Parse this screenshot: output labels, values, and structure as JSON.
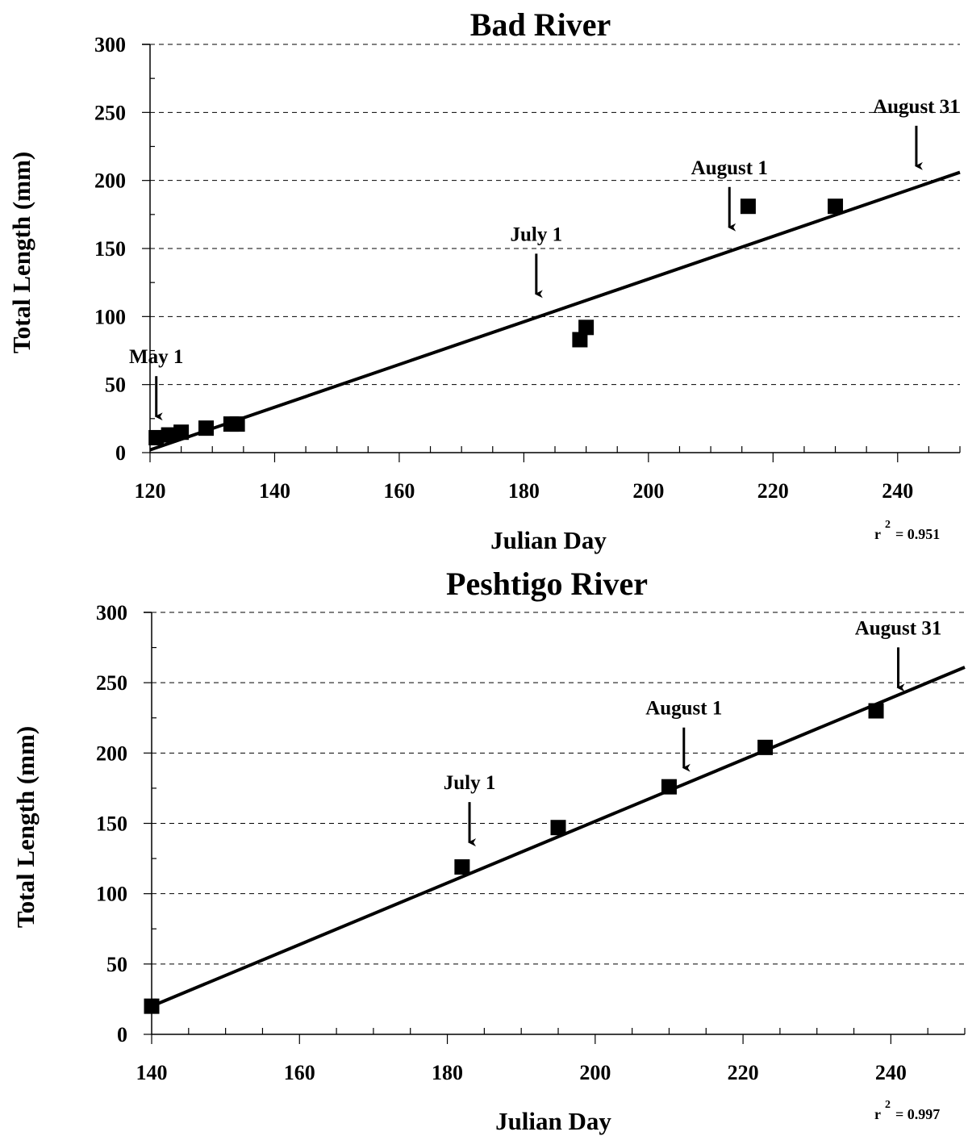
{
  "chart_data": [
    {
      "type": "scatter",
      "title": "Bad River",
      "xlabel": "Julian Day",
      "ylabel": "Total Length (mm)",
      "xlim": [
        120,
        250
      ],
      "ylim": [
        0,
        300
      ],
      "xticks": [
        120,
        140,
        160,
        180,
        200,
        220,
        240
      ],
      "yticks": [
        0,
        50,
        100,
        150,
        200,
        250,
        300
      ],
      "grid": "horizontal dashed",
      "points": [
        {
          "x": 121,
          "y": 11
        },
        {
          "x": 123,
          "y": 13
        },
        {
          "x": 125,
          "y": 15
        },
        {
          "x": 129,
          "y": 18
        },
        {
          "x": 133,
          "y": 21
        },
        {
          "x": 134,
          "y": 21
        },
        {
          "x": 189,
          "y": 83
        },
        {
          "x": 190,
          "y": 92
        },
        {
          "x": 216,
          "y": 181
        },
        {
          "x": 230,
          "y": 181
        }
      ],
      "trendline": {
        "x": [
          120,
          250
        ],
        "y": [
          2,
          206
        ]
      },
      "r2_label": "r",
      "r2_exp": "2",
      "r2_value": "= 0.951",
      "annotations": [
        {
          "text": "May 1",
          "x": 121,
          "y": 23
        },
        {
          "text": "July 1",
          "x": 182,
          "y": 113
        },
        {
          "text": "August 1",
          "x": 213,
          "y": 162
        },
        {
          "text": "August 31",
          "x": 243,
          "y": 207
        }
      ]
    },
    {
      "type": "scatter",
      "title": "Peshtigo River",
      "xlabel": "Julian Day",
      "ylabel": "Total Length (mm)",
      "xlim": [
        140,
        250
      ],
      "ylim": [
        0,
        300
      ],
      "xticks": [
        140,
        160,
        180,
        200,
        220,
        240
      ],
      "yticks": [
        0,
        50,
        100,
        150,
        200,
        250,
        300
      ],
      "grid": "horizontal dashed",
      "points": [
        {
          "x": 140,
          "y": 20
        },
        {
          "x": 182,
          "y": 119
        },
        {
          "x": 195,
          "y": 147
        },
        {
          "x": 210,
          "y": 176
        },
        {
          "x": 223,
          "y": 204
        },
        {
          "x": 238,
          "y": 230
        }
      ],
      "trendline": {
        "x": [
          140,
          250
        ],
        "y": [
          20,
          261
        ]
      },
      "r2_label": "r",
      "r2_exp": "2",
      "r2_value": "= 0.997",
      "annotations": [
        {
          "text": "July 1",
          "x": 183,
          "y": 133
        },
        {
          "text": "August 1",
          "x": 212,
          "y": 186
        },
        {
          "text": "August 31",
          "x": 241,
          "y": 243
        }
      ]
    }
  ]
}
